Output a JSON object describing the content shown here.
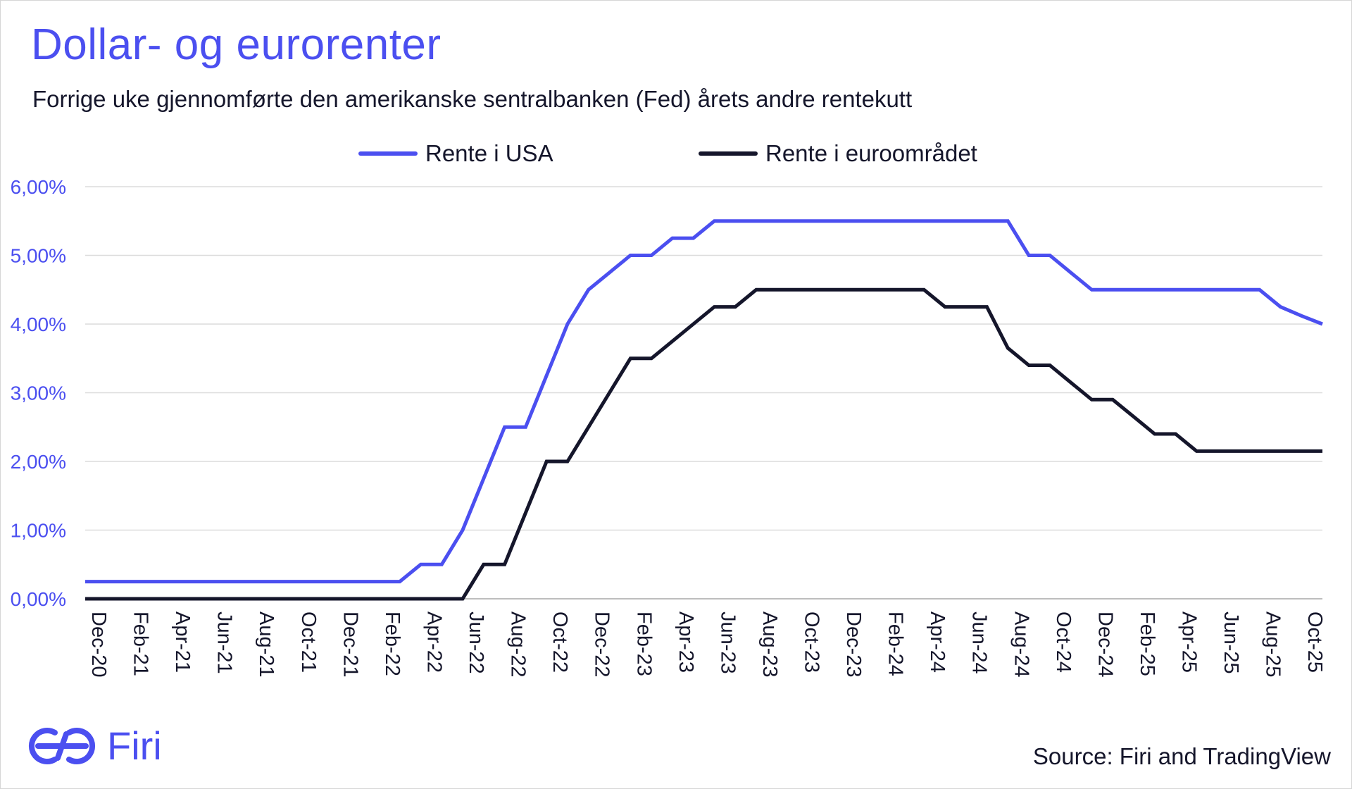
{
  "header": {
    "title": "Dollar- og eurorenter",
    "subtitle": "Forrige uke gjennomførte den amerikanske sentralbanken (Fed) årets andre rentekutt"
  },
  "footer": {
    "source": "Source: Firi and TradingView",
    "brand": "Firi"
  },
  "colors": {
    "accent": "#4b4ff0",
    "usa_line": "#4b4ff0",
    "euro_line": "#15162b",
    "grid": "#dcdcdc",
    "tick_label": "#4b4ff0",
    "x_tick_label": "#15162b"
  },
  "chart_data": {
    "type": "line",
    "title": "Dollar- og eurorenter",
    "xlabel": "",
    "ylabel": "",
    "ylim": [
      0,
      6
    ],
    "yticks": [
      0,
      1,
      2,
      3,
      4,
      5,
      6
    ],
    "yticklabels": [
      "0,00%",
      "1,00%",
      "2,00%",
      "3,00%",
      "4,00%",
      "5,00%",
      "6,00%"
    ],
    "xticklabels": [
      "Dec-20",
      "Feb-21",
      "Apr-21",
      "Jun-21",
      "Aug-21",
      "Oct-21",
      "Dec-21",
      "Feb-22",
      "Apr-22",
      "Jun-22",
      "Aug-22",
      "Oct-22",
      "Dec-22",
      "Feb-23",
      "Apr-23",
      "Jun-23",
      "Aug-23",
      "Oct-23",
      "Dec-23",
      "Feb-24",
      "Apr-24",
      "Jun-24",
      "Aug-24",
      "Oct-24",
      "Dec-24",
      "Feb-25",
      "Apr-25",
      "Jun-25",
      "Aug-25",
      "Oct-25"
    ],
    "grid": true,
    "legend_position": "top-center",
    "x": [
      "Dec-20",
      "Jan-21",
      "Feb-21",
      "Mar-21",
      "Apr-21",
      "May-21",
      "Jun-21",
      "Jul-21",
      "Aug-21",
      "Sep-21",
      "Oct-21",
      "Nov-21",
      "Dec-21",
      "Jan-22",
      "Feb-22",
      "Mar-22",
      "Apr-22",
      "May-22",
      "Jun-22",
      "Jul-22",
      "Aug-22",
      "Sep-22",
      "Oct-22",
      "Nov-22",
      "Dec-22",
      "Jan-23",
      "Feb-23",
      "Mar-23",
      "Apr-23",
      "May-23",
      "Jun-23",
      "Jul-23",
      "Aug-23",
      "Sep-23",
      "Oct-23",
      "Nov-23",
      "Dec-23",
      "Jan-24",
      "Feb-24",
      "Mar-24",
      "Apr-24",
      "May-24",
      "Jun-24",
      "Jul-24",
      "Aug-24",
      "Sep-24",
      "Oct-24",
      "Nov-24",
      "Dec-24",
      "Jan-25",
      "Feb-25",
      "Mar-25",
      "Apr-25",
      "May-25",
      "Jun-25",
      "Jul-25",
      "Aug-25",
      "Sep-25",
      "Oct-25",
      "Nov-25"
    ],
    "series": [
      {
        "name": "Rente i USA",
        "color": "#4b4ff0",
        "values": [
          0.25,
          0.25,
          0.25,
          0.25,
          0.25,
          0.25,
          0.25,
          0.25,
          0.25,
          0.25,
          0.25,
          0.25,
          0.25,
          0.25,
          0.25,
          0.25,
          0.5,
          0.5,
          1.0,
          1.75,
          2.5,
          2.5,
          3.25,
          4.0,
          4.5,
          4.75,
          5.0,
          5.0,
          5.25,
          5.25,
          5.5,
          5.5,
          5.5,
          5.5,
          5.5,
          5.5,
          5.5,
          5.5,
          5.5,
          5.5,
          5.5,
          5.5,
          5.5,
          5.5,
          5.5,
          5.0,
          5.0,
          4.75,
          4.5,
          4.5,
          4.5,
          4.5,
          4.5,
          4.5,
          4.5,
          4.5,
          4.5,
          4.25,
          4.12,
          4.0
        ]
      },
      {
        "name": "Rente i euroområdet",
        "color": "#15162b",
        "values": [
          0,
          0,
          0,
          0,
          0,
          0,
          0,
          0,
          0,
          0,
          0,
          0,
          0,
          0,
          0,
          0,
          0,
          0,
          0,
          0.5,
          0.5,
          1.25,
          2.0,
          2.0,
          2.5,
          3.0,
          3.5,
          3.5,
          3.75,
          4.0,
          4.25,
          4.25,
          4.5,
          4.5,
          4.5,
          4.5,
          4.5,
          4.5,
          4.5,
          4.5,
          4.5,
          4.25,
          4.25,
          4.25,
          3.65,
          3.4,
          3.4,
          3.15,
          2.9,
          2.9,
          2.65,
          2.4,
          2.4,
          2.15,
          2.15,
          2.15,
          2.15,
          2.15,
          2.15,
          2.15
        ]
      }
    ]
  }
}
